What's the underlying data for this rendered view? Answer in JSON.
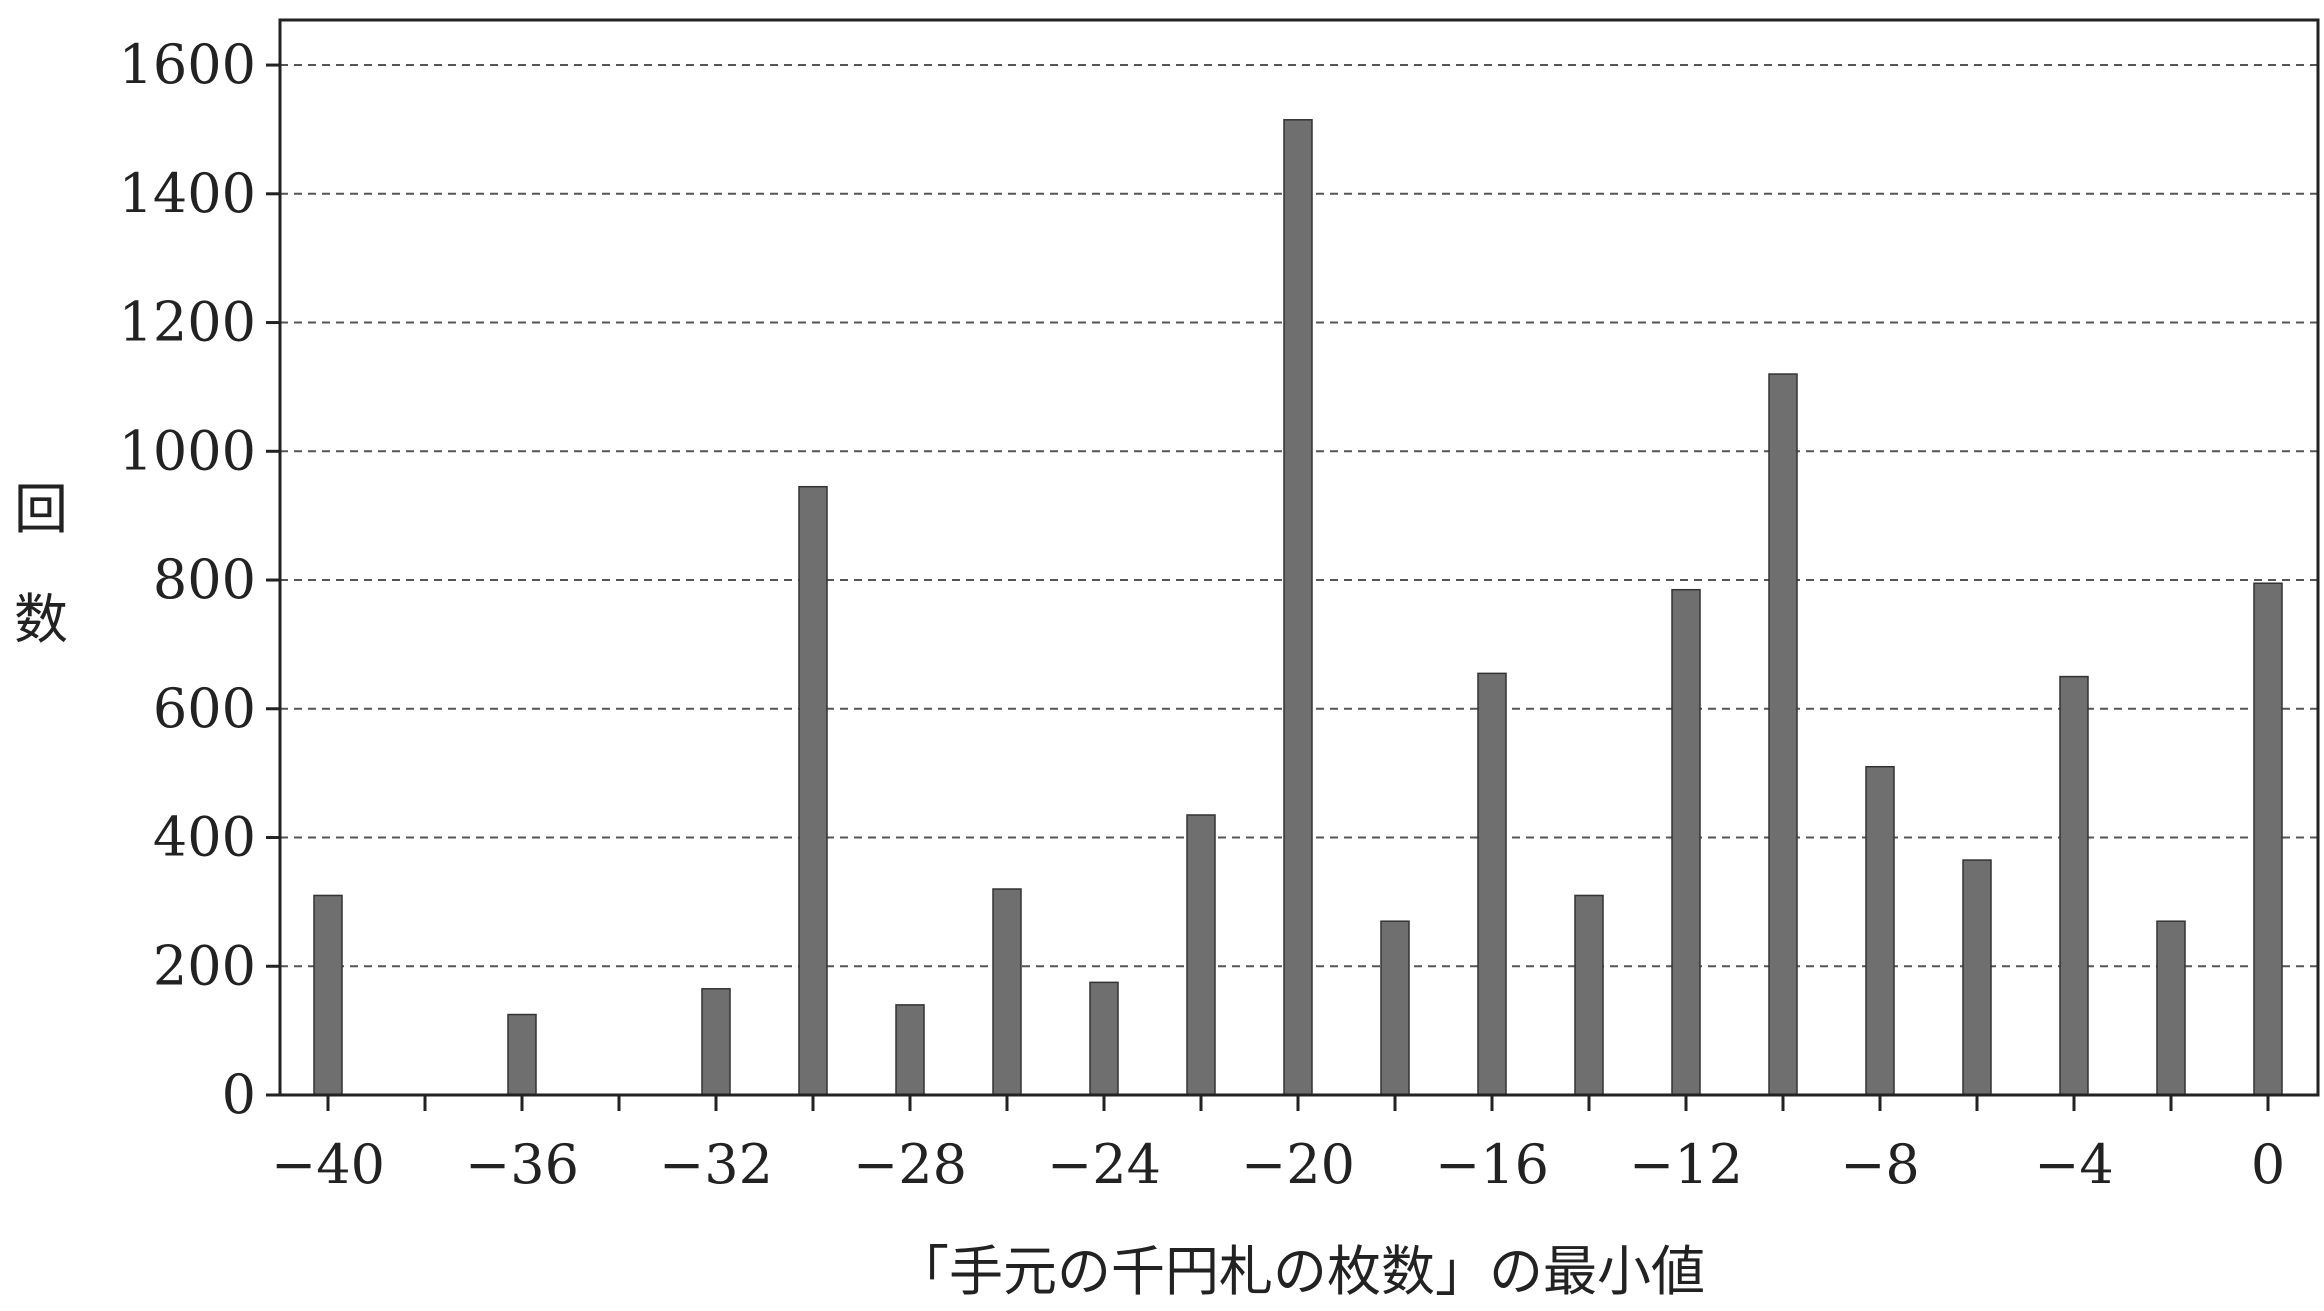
{
  "chart_data": {
    "type": "bar",
    "title": "",
    "xlabel": "「手元の千円札の枚数」の最小値",
    "ylabel": "回数",
    "x": [
      -40,
      -38,
      -36,
      -34,
      -32,
      -30,
      -28,
      -26,
      -24,
      -22,
      -20,
      -18,
      -16,
      -14,
      -12,
      -10,
      -8,
      -6,
      -4,
      -2,
      0
    ],
    "values": [
      310,
      0,
      125,
      0,
      165,
      945,
      140,
      320,
      175,
      435,
      1515,
      270,
      655,
      310,
      785,
      1120,
      510,
      365,
      650,
      270,
      795
    ],
    "xticks": [
      -40,
      -36,
      -32,
      -28,
      -24,
      -20,
      -16,
      -12,
      -8,
      -4,
      0
    ],
    "xtick_labels": [
      "−40",
      "−36",
      "−32",
      "−28",
      "−24",
      "−20",
      "−16",
      "−12",
      "−8",
      "−4",
      "0"
    ],
    "yticks": [
      0,
      200,
      400,
      600,
      800,
      1000,
      1200,
      1400,
      1600
    ],
    "ytick_labels": [
      "0",
      "200",
      "400",
      "600",
      "800",
      "1000",
      "1200",
      "1400",
      "1600"
    ],
    "xlim": [
      -41,
      1
    ],
    "ylim": [
      0,
      1670
    ],
    "grid": "horizontal dashed",
    "bar_color": "#6f6f6f"
  }
}
